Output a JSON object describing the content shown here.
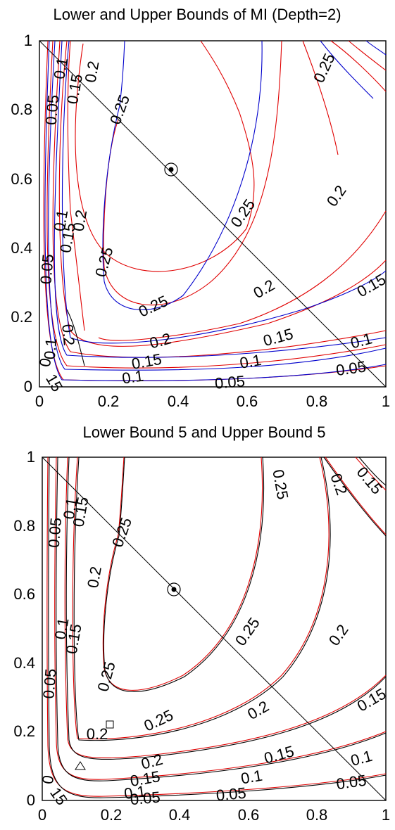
{
  "chart_data": [
    {
      "type": "contour",
      "title": "Lower and Upper Bounds of MI (Depth=2)",
      "xlim": [
        0,
        1
      ],
      "ylim": [
        0,
        1
      ],
      "xticks": [
        0,
        0.2,
        0.4,
        0.6,
        0.8,
        1
      ],
      "yticks": [
        0,
        0.2,
        0.4,
        0.6,
        0.8,
        1
      ],
      "xtick_labels": [
        "0",
        "0.2",
        "0.4",
        "0.6",
        "0.8",
        "1"
      ],
      "ytick_labels": [
        "0",
        "0.2",
        "0.4",
        "0.6",
        "0.8",
        "1"
      ],
      "series_colors": {
        "lower": "#0000cc",
        "upper": "#e00000",
        "reference": "#000000"
      },
      "grid": false,
      "reference_line": [
        [
          0,
          1
        ],
        [
          1,
          0
        ]
      ],
      "marked_point": {
        "x": 0.38,
        "y": 0.62,
        "marker": "circled-dot"
      },
      "contour_labels": [
        {
          "text": "0.05",
          "x": 0.04,
          "y": 0.8,
          "angle": -85
        },
        {
          "text": "0.1",
          "x": 0.065,
          "y": 0.92,
          "angle": -80
        },
        {
          "text": "0.15",
          "x": 0.105,
          "y": 0.86,
          "angle": -80
        },
        {
          "text": "0.2",
          "x": 0.155,
          "y": 0.91,
          "angle": -80
        },
        {
          "text": "0.25",
          "x": 0.235,
          "y": 0.8,
          "angle": -70
        },
        {
          "text": "0.25",
          "x": 0.825,
          "y": 0.92,
          "angle": -65
        },
        {
          "text": "0.05",
          "x": 0.025,
          "y": 0.34,
          "angle": -85
        },
        {
          "text": "0.1",
          "x": 0.065,
          "y": 0.48,
          "angle": -80
        },
        {
          "text": "0.15",
          "x": 0.085,
          "y": 0.43,
          "angle": -80
        },
        {
          "text": "0.2",
          "x": 0.12,
          "y": 0.48,
          "angle": -80
        },
        {
          "text": "0.25",
          "x": 0.19,
          "y": 0.36,
          "angle": -75
        },
        {
          "text": "0.25",
          "x": 0.59,
          "y": 0.5,
          "angle": -55
        },
        {
          "text": "0.2",
          "x": 0.86,
          "y": 0.55,
          "angle": -55
        },
        {
          "text": "0.25",
          "x": 0.33,
          "y": 0.23,
          "angle": -25
        },
        {
          "text": "0.2",
          "x": 0.65,
          "y": 0.28,
          "angle": -30
        },
        {
          "text": "0.15",
          "x": 0.96,
          "y": 0.29,
          "angle": -30
        },
        {
          "text": "0.2",
          "x": 0.35,
          "y": 0.13,
          "angle": -15
        },
        {
          "text": "0.15",
          "x": 0.69,
          "y": 0.14,
          "angle": -15
        },
        {
          "text": "0.1",
          "x": 0.93,
          "y": 0.13,
          "angle": -15
        },
        {
          "text": "0.15",
          "x": 0.31,
          "y": 0.07,
          "angle": -10
        },
        {
          "text": "0.1",
          "x": 0.61,
          "y": 0.07,
          "angle": -10
        },
        {
          "text": "0.05",
          "x": 0.9,
          "y": 0.05,
          "angle": -8
        },
        {
          "text": "0.1",
          "x": 0.27,
          "y": 0.025,
          "angle": -8
        },
        {
          "text": "0.05",
          "x": 0.55,
          "y": 0.01,
          "angle": -5
        },
        {
          "text": "0.2",
          "x": 0.08,
          "y": 0.15,
          "angle": 85
        },
        {
          "text": "0.1",
          "x": 0.035,
          "y": 0.11,
          "angle": -85
        },
        {
          "text": "0",
          "x": 0.02,
          "y": 0.07,
          "angle": -80
        },
        {
          "text": "15",
          "x": 0.04,
          "y": 0.01,
          "angle": 60
        }
      ]
    },
    {
      "type": "contour",
      "title": "Lower Bound 5 and Upper Bound 5",
      "xlim": [
        0,
        1
      ],
      "ylim": [
        0,
        1
      ],
      "xticks": [
        0,
        0.2,
        0.4,
        0.6,
        0.8,
        1
      ],
      "yticks": [
        0,
        0.2,
        0.4,
        0.6,
        0.8,
        1
      ],
      "xtick_labels": [
        "0",
        "0.2",
        "0.4",
        "0.6",
        "0.8",
        "1"
      ],
      "ytick_labels": [
        "0",
        "0.2",
        "0.4",
        "0.6",
        "0.8",
        "1"
      ],
      "series_colors": {
        "lower": "#000000",
        "upper": "#e00000",
        "reference": "#000000"
      },
      "grid": false,
      "reference_line": [
        [
          0,
          1
        ],
        [
          1,
          0
        ]
      ],
      "marked_point": {
        "x": 0.38,
        "y": 0.62,
        "marker": "circled-dot"
      },
      "extra_markers": [
        {
          "x": 0.2,
          "y": 0.22,
          "marker": "square"
        },
        {
          "x": 0.11,
          "y": 0.1,
          "marker": "triangle"
        }
      ],
      "contour_labels": [
        {
          "text": "0.05",
          "x": 0.04,
          "y": 0.78,
          "angle": -85
        },
        {
          "text": "0.1",
          "x": 0.085,
          "y": 0.85,
          "angle": -80
        },
        {
          "text": "0.15",
          "x": 0.115,
          "y": 0.84,
          "angle": -80
        },
        {
          "text": "0.2",
          "x": 0.155,
          "y": 0.65,
          "angle": -80
        },
        {
          "text": "0.25",
          "x": 0.235,
          "y": 0.78,
          "angle": -70
        },
        {
          "text": "0.25",
          "x": 0.69,
          "y": 0.92,
          "angle": 80
        },
        {
          "text": "0.2",
          "x": 0.86,
          "y": 0.92,
          "angle": 70
        },
        {
          "text": "0.15",
          "x": 0.95,
          "y": 0.93,
          "angle": 50
        },
        {
          "text": "0.05",
          "x": 0.025,
          "y": 0.34,
          "angle": -85
        },
        {
          "text": "0.1",
          "x": 0.06,
          "y": 0.5,
          "angle": -80
        },
        {
          "text": "0.15",
          "x": 0.095,
          "y": 0.47,
          "angle": -80
        },
        {
          "text": "0.25",
          "x": 0.19,
          "y": 0.36,
          "angle": -75
        },
        {
          "text": "0.25",
          "x": 0.6,
          "y": 0.49,
          "angle": -55
        },
        {
          "text": "0.2",
          "x": 0.865,
          "y": 0.48,
          "angle": -55
        },
        {
          "text": "0.25",
          "x": 0.34,
          "y": 0.23,
          "angle": -25
        },
        {
          "text": "0.2",
          "x": 0.63,
          "y": 0.26,
          "angle": -30
        },
        {
          "text": "0.15",
          "x": 0.96,
          "y": 0.29,
          "angle": -30
        },
        {
          "text": "0.2",
          "x": 0.32,
          "y": 0.11,
          "angle": -15
        },
        {
          "text": "0.15",
          "x": 0.69,
          "y": 0.13,
          "angle": -15
        },
        {
          "text": "0.1",
          "x": 0.93,
          "y": 0.12,
          "angle": -15
        },
        {
          "text": "0.15",
          "x": 0.3,
          "y": 0.06,
          "angle": -10
        },
        {
          "text": "0.1",
          "x": 0.61,
          "y": 0.065,
          "angle": -10
        },
        {
          "text": "0.05",
          "x": 0.9,
          "y": 0.05,
          "angle": -8
        },
        {
          "text": "0.1",
          "x": 0.27,
          "y": 0.02,
          "angle": -8
        },
        {
          "text": "0.05",
          "x": 0.55,
          "y": 0.015,
          "angle": -5
        },
        {
          "text": "0.05",
          "x": 0.3,
          "y": 0.003,
          "angle": -5
        },
        {
          "text": "0.2",
          "x": 0.16,
          "y": 0.19,
          "angle": 0
        },
        {
          "text": "0",
          "x": 0.02,
          "y": 0.06,
          "angle": -80
        },
        {
          "text": "15",
          "x": 0.045,
          "y": 0.01,
          "angle": 55
        }
      ]
    }
  ]
}
